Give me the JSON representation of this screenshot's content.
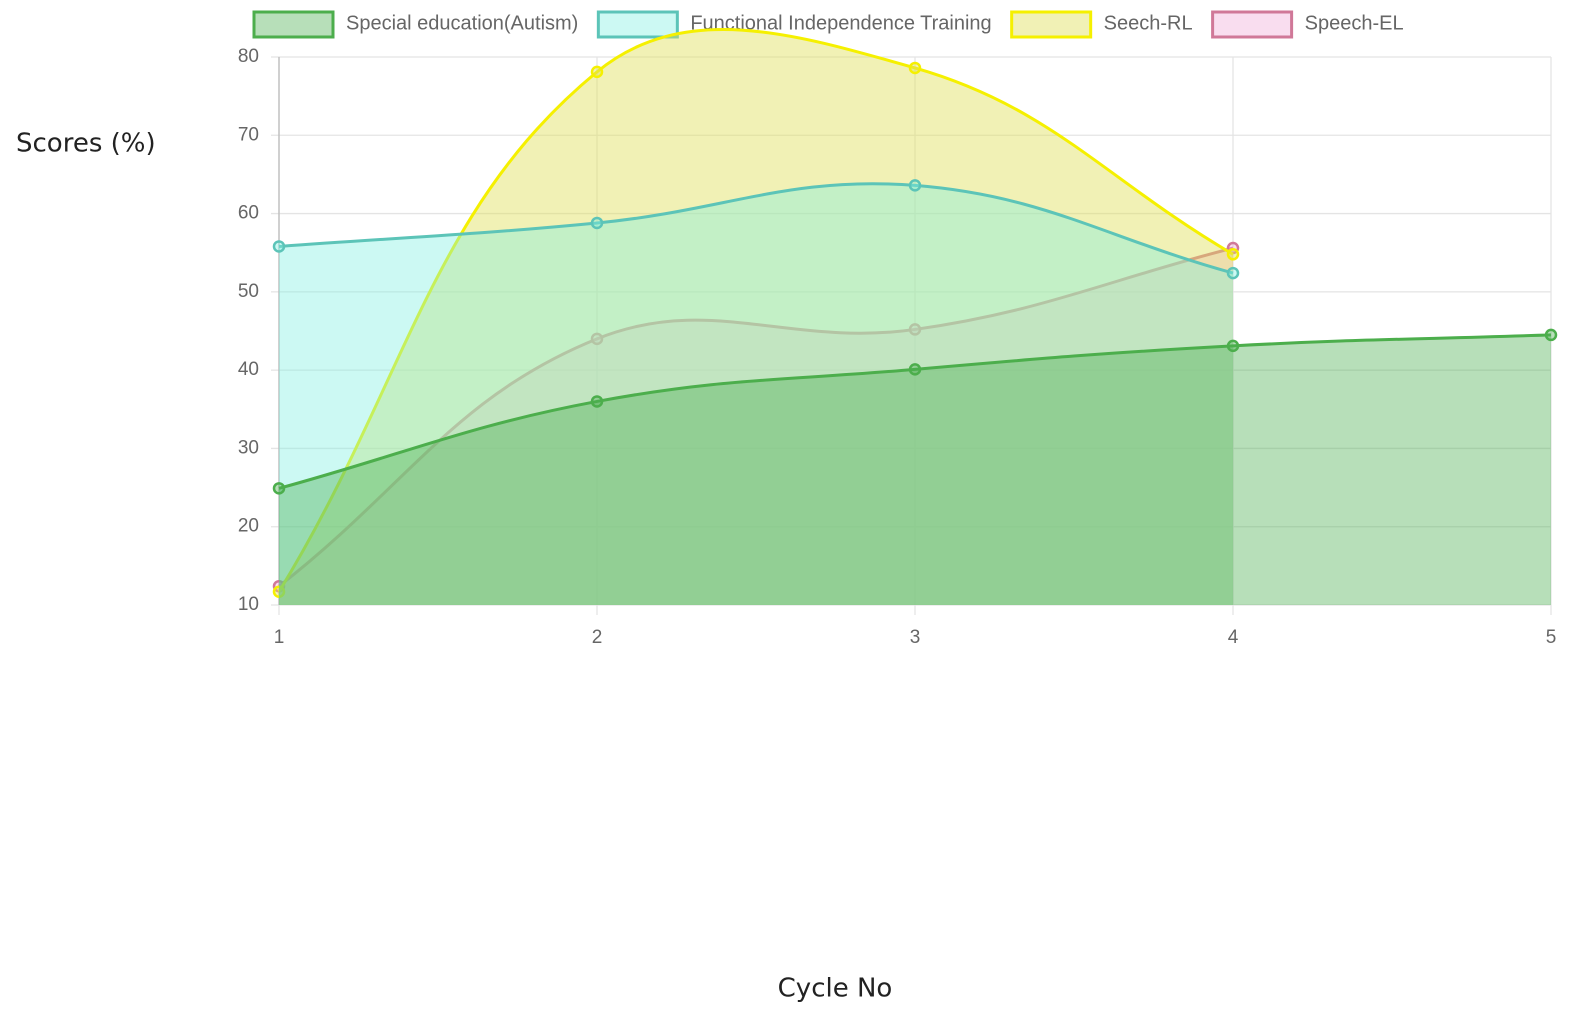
{
  "chart_data": {
    "type": "area",
    "x_label": "Cycle No",
    "y_label": "Scores (%)",
    "x": [
      1,
      2,
      3,
      4,
      5
    ],
    "xlim": [
      1,
      5
    ],
    "xticks": [
      1,
      2,
      3,
      4,
      5
    ],
    "ylim": [
      10,
      80
    ],
    "yticks": [
      10,
      20,
      30,
      40,
      50,
      60,
      70,
      80
    ],
    "grid": true,
    "legend": "top",
    "series": [
      {
        "name": "Special education(Autism)",
        "color": "#4cae4c",
        "fill": "rgba(76,175,80,0.4)",
        "values": [
          24.9,
          36,
          40.1,
          43.1,
          44.5
        ]
      },
      {
        "name": "Functional Independence Training",
        "color": "#5cc4b8",
        "fill": "rgba(127,240,225,0.4)",
        "values": [
          55.8,
          58.8,
          63.6,
          52.4,
          null
        ]
      },
      {
        "name": "Seech-RL",
        "color": "#f5f000",
        "fill": "rgba(225,225,90,0.45)",
        "values": [
          11.7,
          78.1,
          78.6,
          54.8,
          null
        ]
      },
      {
        "name": "Speech-EL",
        "color": "#d07898",
        "fill": "rgba(240,170,215,0.4)",
        "values": [
          12.4,
          44,
          45.2,
          55.6,
          null
        ]
      }
    ]
  }
}
